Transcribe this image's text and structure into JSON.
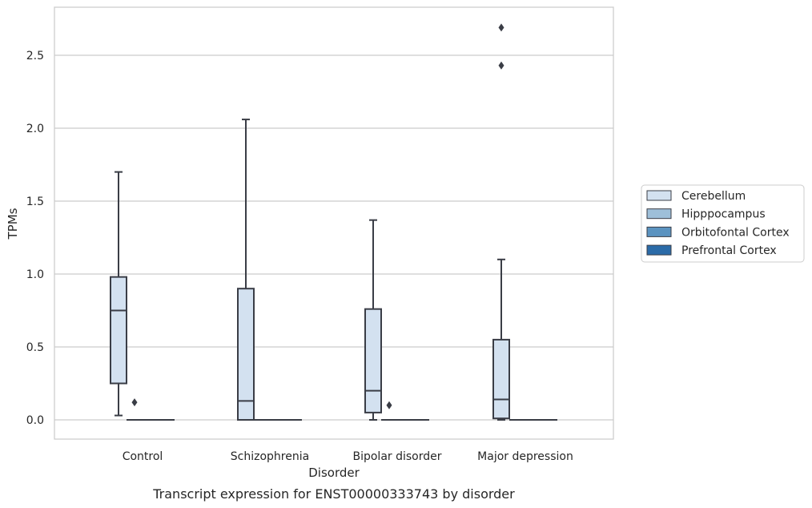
{
  "chart_data": {
    "type": "box",
    "title": "",
    "caption": "Transcript expression for ENST00000333743 by disorder",
    "xlabel": "Disorder",
    "ylabel": "TPMs",
    "ylim": [
      -0.13,
      2.84
    ],
    "yticks": [
      0.0,
      0.5,
      1.0,
      1.5,
      2.0,
      2.5
    ],
    "ytick_labels": [
      "0.0",
      "0.5",
      "1.0",
      "1.5",
      "2.0",
      "2.5"
    ],
    "grid": "horizontal",
    "legend_position": "right",
    "categories": [
      "Control",
      "Schizophrenia",
      "Bipolar disorder",
      "Major depression"
    ],
    "series": [
      {
        "name": "Cerebellum",
        "color": "#d3e1f0",
        "boxes": [
          {
            "whisker_low": 0.03,
            "q1": 0.25,
            "median": 0.75,
            "q3": 0.98,
            "whisker_high": 1.7,
            "outliers": []
          },
          {
            "whisker_low": 0.0,
            "q1": 0.0,
            "median": 0.13,
            "q3": 0.9,
            "whisker_high": 2.06,
            "outliers": []
          },
          {
            "whisker_low": 0.0,
            "q1": 0.05,
            "median": 0.2,
            "q3": 0.76,
            "whisker_high": 1.37,
            "outliers": []
          },
          {
            "whisker_low": 0.0,
            "q1": 0.01,
            "median": 0.14,
            "q3": 0.55,
            "whisker_high": 1.1,
            "outliers": [
              2.43,
              2.69
            ]
          }
        ]
      },
      {
        "name": "Hipppocampus",
        "color": "#9ebfd9",
        "boxes": [
          {
            "whisker_low": 0.0,
            "q1": 0.0,
            "median": 0.0,
            "q3": 0.0,
            "whisker_high": 0.0,
            "outliers": [
              0.12
            ]
          },
          {
            "whisker_low": 0.0,
            "q1": 0.0,
            "median": 0.0,
            "q3": 0.0,
            "whisker_high": 0.0,
            "outliers": []
          },
          {
            "whisker_low": 0.0,
            "q1": 0.0,
            "median": 0.0,
            "q3": 0.0,
            "whisker_high": 0.0,
            "outliers": [
              0.1
            ]
          },
          {
            "whisker_low": 0.0,
            "q1": 0.0,
            "median": 0.0,
            "q3": 0.0,
            "whisker_high": 0.0,
            "outliers": []
          }
        ]
      },
      {
        "name": "Orbitofontal Cortex",
        "color": "#5b93c0",
        "boxes": [
          {
            "whisker_low": 0.0,
            "q1": 0.0,
            "median": 0.0,
            "q3": 0.0,
            "whisker_high": 0.0,
            "outliers": []
          },
          {
            "whisker_low": 0.0,
            "q1": 0.0,
            "median": 0.0,
            "q3": 0.0,
            "whisker_high": 0.0,
            "outliers": []
          },
          {
            "whisker_low": 0.0,
            "q1": 0.0,
            "median": 0.0,
            "q3": 0.0,
            "whisker_high": 0.0,
            "outliers": []
          },
          {
            "whisker_low": 0.0,
            "q1": 0.0,
            "median": 0.0,
            "q3": 0.0,
            "whisker_high": 0.0,
            "outliers": []
          }
        ]
      },
      {
        "name": "Prefrontal Cortex",
        "color": "#2b6ba8",
        "boxes": [
          {
            "whisker_low": 0.0,
            "q1": 0.0,
            "median": 0.0,
            "q3": 0.0,
            "whisker_high": 0.0,
            "outliers": []
          },
          {
            "whisker_low": 0.0,
            "q1": 0.0,
            "median": 0.0,
            "q3": 0.0,
            "whisker_high": 0.0,
            "outliers": []
          },
          {
            "whisker_low": 0.0,
            "q1": 0.0,
            "median": 0.0,
            "q3": 0.0,
            "whisker_high": 0.0,
            "outliers": []
          },
          {
            "whisker_low": 0.0,
            "q1": 0.0,
            "median": 0.0,
            "q3": 0.0,
            "whisker_high": 0.0,
            "outliers": []
          }
        ]
      }
    ],
    "line_color": "#3a3d46",
    "grid_color": "#cccccc"
  }
}
